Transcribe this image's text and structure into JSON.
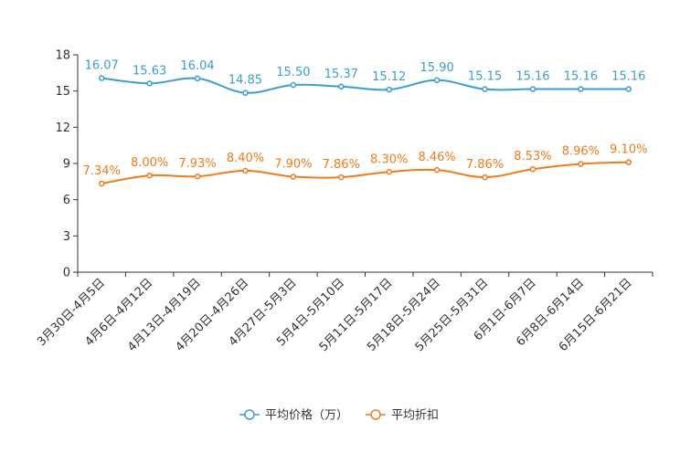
{
  "chart_data": {
    "type": "line",
    "categories": [
      "3月30日-4月5日",
      "4月6日-4月12日",
      "4月13日-4月19日",
      "4月20日-4月26日",
      "4月27日-5月3日",
      "5月4日-5月10日",
      "5月11日-5月17日",
      "5月18日-5月24日",
      "5月25日-5月31日",
      "6月1日-6月7日",
      "6月8日-6月14日",
      "6月15日-6月21日"
    ],
    "ylim": [
      0,
      18
    ],
    "yticks": [
      0,
      3,
      6,
      9,
      12,
      15,
      18
    ],
    "series": [
      {
        "name": "平均价格（万）",
        "color": "#3a9fcf",
        "values": [
          16.07,
          15.63,
          16.04,
          14.85,
          15.5,
          15.37,
          15.12,
          15.9,
          15.15,
          15.16,
          15.16,
          15.16
        ],
        "labels": [
          "16.07",
          "15.63",
          "16.04",
          "14.85",
          "15.50",
          "15.37",
          "15.12",
          "15.90",
          "15.15",
          "15.16",
          "15.16",
          "15.16"
        ]
      },
      {
        "name": "平均折扣",
        "color": "#f07b1d",
        "values": [
          7.34,
          8.0,
          7.93,
          8.4,
          7.9,
          7.86,
          8.3,
          8.46,
          7.86,
          8.53,
          8.96,
          9.1
        ],
        "labels": [
          "7.34%",
          "8.00%",
          "7.93%",
          "8.40%",
          "7.90%",
          "7.86%",
          "8.30%",
          "8.46%",
          "7.86%",
          "8.53%",
          "8.96%",
          "9.10%"
        ]
      }
    ],
    "legend_position": "bottom-center"
  }
}
